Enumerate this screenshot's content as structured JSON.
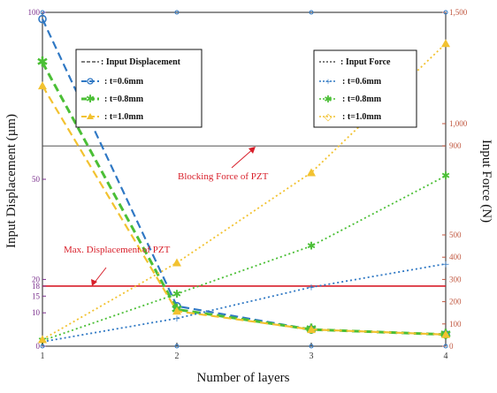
{
  "chart_data": {
    "type": "line",
    "x_categories": [
      1,
      2,
      3,
      4
    ],
    "xlabel": "Number of layers",
    "ylabel_left": "Input Displacement (µm)",
    "ylabel_right": "Input Force (N)",
    "left_axis": {
      "range": [
        0,
        100
      ],
      "ticks": [
        "0",
        "10",
        "15",
        "18",
        "20",
        "50",
        "100"
      ],
      "tick_values": [
        0,
        10,
        15,
        18,
        20,
        50,
        100
      ]
    },
    "right_axis": {
      "range": [
        0,
        1500
      ],
      "ticks": [
        "0",
        "100",
        "200",
        "300",
        "400",
        "500",
        "900",
        "1,000",
        "1,500"
      ],
      "tick_values": [
        0,
        100,
        200,
        300,
        400,
        500,
        900,
        1000,
        1500
      ]
    },
    "grid": false,
    "legend_left": {
      "title": ": Input Displacement",
      "entries": [
        ": t=0.6mm",
        ": t=0.8mm",
        ": t=1.0mm"
      ]
    },
    "legend_right": {
      "title": ": Input Force",
      "entries": [
        ": t=0.6mm",
        ": t=0.8mm",
        ": t=1.0mm"
      ]
    },
    "annotations": [
      {
        "text": "Blocking Force of PZT",
        "value": 900,
        "axis": "right"
      },
      {
        "text": "Max. Displacement of PZT",
        "value": 18,
        "axis": "left"
      }
    ],
    "reference_lines": [
      {
        "axis": "right",
        "value": 900,
        "color": "#555555"
      },
      {
        "axis": "left",
        "value": 18,
        "color": "#d81f2a"
      }
    ],
    "series": [
      {
        "name": "t=0.6mm",
        "kind": "displacement",
        "axis": "left",
        "color": "#2f78c4",
        "values": [
          98,
          12,
          5,
          3.5
        ]
      },
      {
        "name": "t=0.8mm",
        "kind": "displacement",
        "axis": "left",
        "color": "#4bbf36",
        "values": [
          85,
          11,
          5,
          3.5
        ]
      },
      {
        "name": "t=1.0mm",
        "kind": "displacement",
        "axis": "left",
        "color": "#f2c230",
        "values": [
          78,
          10.5,
          5,
          3.5
        ]
      },
      {
        "name": "t=0.6mm",
        "kind": "force",
        "axis": "right",
        "color": "#2f78c4",
        "values": [
          20,
          125,
          265,
          370
        ]
      },
      {
        "name": "t=0.8mm",
        "kind": "force",
        "axis": "right",
        "color": "#4bbf36",
        "values": [
          25,
          235,
          450,
          765
        ]
      },
      {
        "name": "t=1.0mm",
        "kind": "force",
        "axis": "right",
        "color": "#f2c230",
        "values": [
          30,
          375,
          780,
          1360
        ]
      }
    ]
  }
}
